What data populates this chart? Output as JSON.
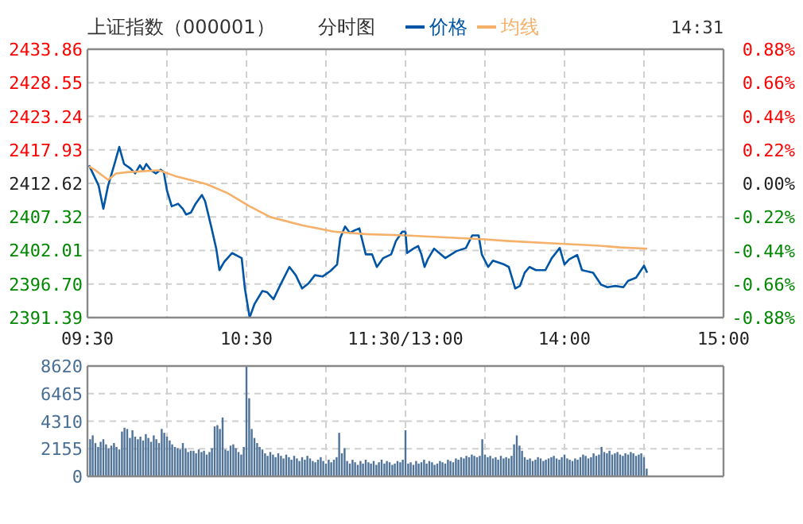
{
  "chart_data": [
    {
      "type": "line",
      "title": "上证指数（000001）",
      "subtitle": "分时图",
      "legend": "top",
      "grid": true,
      "xlim": [
        9.5,
        11.5
      ],
      "xticks": [
        {
          "value": 9.5,
          "label": "09:30"
        },
        {
          "value": 10,
          "label": null
        },
        {
          "value": 10.5,
          "label": "10:30"
        },
        {
          "value": 11,
          "label": null
        }
      ],
      "ylim": [
        2391.39,
        2433.86
      ],
      "yticks": [
        2391.39,
        {
          "value": 2396.7,
          "label": "2396.70"
        },
        2402.01,
        2407.32,
        2412.62,
        2417.93,
        2423.24,
        2428.55,
        2433.86
      ],
      "series": [
        {
          "name": "价格",
          "color": "#0055a5",
          "x": [
            9.51,
            9.57,
            9.6,
            9.63,
            9.67,
            9.7,
            9.73,
            9.77,
            9.8,
            9.83,
            9.85,
            9.87,
            9.9,
            9.93,
            9.96,
            9.98,
            10.0,
            10.03,
            10.07,
            10.1,
            10.12,
            10.15,
            10.18,
            10.22,
            10.24,
            10.28,
            10.31,
            10.33,
            10.36,
            10.41,
            10.47,
            10.49,
            10.52,
            10.55,
            10.6,
            10.63,
            10.67,
            10.71,
            10.77,
            10.81,
            10.85,
            10.89,
            10.93,
            10.98,
            11.03,
            11.07,
            11.09,
            11.12,
            11.15,
            11.18,
            11.21,
            11.25,
            11.29,
            11.32,
            11.36,
            11.41,
            11.44,
            11.48,
            11.5
          ],
          "values": [
            2415.5,
            2412.3,
            2408.6,
            2412.3,
            2415.7,
            2418.4,
            2415.7,
            2415.0,
            2414.2,
            2415.5,
            2414.7,
            2415.7,
            2414.7,
            2414.2,
            2414.8,
            2414.4,
            2411.5,
            2409.0,
            2409.4,
            2408.6,
            2407.7,
            2408.0,
            2409.4,
            2410.8,
            2409.8,
            2405.6,
            2402.3,
            2398.9,
            2400.2,
            2401.6,
            2400.8,
            2396.0,
            2391.4,
            2393.5,
            2395.6,
            2395.4,
            2394.3,
            2396.4,
            2399.4,
            2398.1,
            2396.0,
            2396.8,
            2398.1,
            2397.9,
            2398.8,
            2399.8,
            2404.0,
            2405.8,
            2404.8,
            2405.2,
            2405.5,
            2401.4,
            2401.4,
            2399.4,
            2400.8,
            2401.4,
            2403.5,
            2405.0,
            2405.0
          ]
        },
        {
          "name": "均线",
          "color": "#f5b06a",
          "x": [
            9.51,
            9.55,
            9.63,
            9.68,
            9.75,
            9.95,
            10.05,
            10.25,
            10.38,
            10.52,
            10.65,
            10.85,
            11.05,
            11.25,
            11.5
          ],
          "values": [
            2415.3,
            2414.7,
            2413.2,
            2414.2,
            2414.4,
            2414.7,
            2413.8,
            2412.5,
            2411.1,
            2409.0,
            2407.3,
            2406.0,
            2405.0,
            2404.6,
            2404.4
          ]
        }
      ]
    },
    {
      "type": "line",
      "annotations": [
        "14:31"
      ],
      "grid": true,
      "tick_labels": "xy2",
      "xlim": [
        13,
        15
      ],
      "xticks": [
        {
          "value": 13,
          "label": "11:30/13:00"
        },
        {
          "value": 13.5,
          "label": null
        },
        {
          "value": 14,
          "label": "14:00"
        },
        {
          "value": 14.5,
          "label": null
        },
        {
          "value": 15,
          "label": "15:00"
        }
      ],
      "ylim": [
        2391.39,
        2433.86
      ],
      "y2lim": [
        -0.88,
        0.88
      ],
      "y2ticks": [
        {
          "value": -0.88,
          "label": "-0.88%"
        },
        {
          "value": -0.66,
          "label": "-0.66%"
        },
        {
          "value": -0.44,
          "label": "-0.44%"
        },
        {
          "value": -0.22,
          "label": "-0.22%"
        },
        {
          "value": 0,
          "label": "0.00%"
        },
        {
          "value": 0.22,
          "label": "0.22%"
        },
        {
          "value": 0.44,
          "label": "0.44%"
        },
        {
          "value": 0.66,
          "label": "0.66%"
        },
        {
          "value": 0.88,
          "label": "0.88%"
        }
      ],
      "series": [
        {
          "color": "#0055a5",
          "x": [
            13.0,
            13.01,
            13.05,
            13.08,
            13.1,
            13.12,
            13.14,
            13.18,
            13.25,
            13.32,
            13.38,
            13.42,
            13.46,
            13.48,
            13.52,
            13.55,
            13.62,
            13.65,
            13.69,
            13.72,
            13.75,
            13.78,
            13.82,
            13.88,
            13.92,
            13.97,
            14.0,
            14.03,
            14.08,
            14.11,
            14.18,
            14.23,
            14.27,
            14.32,
            14.37,
            14.4,
            14.45,
            14.5,
            14.52
          ],
          "values": [
            2405.0,
            2401.6,
            2402.3,
            2402.7,
            2401.4,
            2399.4,
            2400.6,
            2402.3,
            2400.8,
            2401.9,
            2402.4,
            2404.4,
            2404.4,
            2401.4,
            2399.4,
            2400.4,
            2399.8,
            2399.4,
            2396.0,
            2396.4,
            2398.5,
            2399.4,
            2398.9,
            2398.9,
            2400.8,
            2402.4,
            2399.8,
            2400.6,
            2401.3,
            2398.9,
            2398.5,
            2396.6,
            2396.2,
            2396.4,
            2396.2,
            2397.2,
            2397.7,
            2399.6,
            2398.5
          ]
        },
        {
          "color": "#f5b06a",
          "x": [
            13.0,
            13.15,
            13.48,
            13.65,
            13.95,
            14.2,
            14.35,
            14.52
          ],
          "values": [
            2404.4,
            2404.2,
            2403.8,
            2403.5,
            2403.1,
            2402.8,
            2402.5,
            2402.3
          ]
        }
      ]
    },
    {
      "type": "bar",
      "grid": true,
      "tick_labels": "y",
      "color": "#4f7398",
      "xlim": [
        9.5,
        11.5
      ],
      "xticks": [
        {
          "value": 9.5,
          "label": null
        },
        {
          "value": 10,
          "label": null
        },
        {
          "value": 10.5,
          "label": null
        },
        {
          "value": 11,
          "label": null
        }
      ],
      "ylim": [
        0,
        8620
      ],
      "yticks": [
        0,
        2155,
        4310,
        6465,
        8620
      ],
      "x": [
        9.517,
        9.533,
        9.55,
        9.567,
        9.583,
        9.6,
        9.617,
        9.633,
        9.65,
        9.667,
        9.683,
        9.7,
        9.717,
        9.733,
        9.75,
        9.767,
        9.783,
        9.8,
        9.817,
        9.833,
        9.85,
        9.867,
        9.883,
        9.9,
        9.917,
        9.933,
        9.95,
        9.967,
        9.983,
        10,
        10.017,
        10.033,
        10.05,
        10.067,
        10.083,
        10.1,
        10.117,
        10.133,
        10.15,
        10.167,
        10.183,
        10.2,
        10.217,
        10.233,
        10.25,
        10.267,
        10.283,
        10.3,
        10.317,
        10.333,
        10.35,
        10.367,
        10.383,
        10.4,
        10.417,
        10.433,
        10.45,
        10.467,
        10.483,
        10.5,
        10.517,
        10.533,
        10.55,
        10.567,
        10.583,
        10.6,
        10.617,
        10.633,
        10.65,
        10.667,
        10.683,
        10.7,
        10.717,
        10.733,
        10.75,
        10.767,
        10.783,
        10.8,
        10.817,
        10.833,
        10.85,
        10.867,
        10.883,
        10.9,
        10.917,
        10.933,
        10.95,
        10.967,
        10.983,
        11,
        11.017,
        11.033,
        11.05,
        11.067,
        11.083,
        11.1,
        11.117,
        11.133,
        11.15,
        11.167,
        11.183,
        11.2,
        11.217,
        11.233,
        11.25,
        11.267,
        11.283,
        11.3,
        11.317,
        11.333,
        11.35,
        11.367,
        11.383,
        11.4,
        11.417,
        11.433,
        11.45,
        11.467,
        11.483,
        11.5
      ],
      "values": [
        2900,
        3200,
        2600,
        2300,
        2700,
        2900,
        2500,
        2200,
        2400,
        2600,
        2300,
        2100,
        3500,
        3800,
        3700,
        3000,
        3600,
        3100,
        2900,
        3100,
        2800,
        3300,
        3000,
        2700,
        3200,
        2900,
        2600,
        3700,
        3400,
        3100,
        2800,
        2500,
        2300,
        2200,
        2100,
        2600,
        2200,
        1900,
        2000,
        2000,
        1800,
        2100,
        1900,
        2000,
        1700,
        1900,
        2200,
        3900,
        4000,
        3700,
        4600,
        2100,
        2000,
        2400,
        2500,
        2200,
        1900,
        1700,
        2300,
        8600,
        6100,
        3700,
        3000,
        2600,
        2300,
        2100,
        1800,
        1600,
        1900,
        1700,
        1500,
        1800,
        1600,
        1400,
        1700,
        1500,
        1300,
        1600,
        1400,
        1200,
        1500,
        1300,
        1600,
        1400,
        1200,
        1100,
        1300,
        1500,
        1200,
        1000,
        1300,
        1100,
        1300,
        1500,
        3400,
        1800,
        2200,
        1200,
        1000,
        1300,
        1100,
        900,
        1200,
        1000,
        1300,
        1100,
        1000,
        1200,
        900,
        1100,
        1300,
        1000,
        1200,
        1100,
        900,
        1000,
        1200,
        1100,
        1300,
        3600
      ]
    },
    {
      "type": "bar",
      "grid": true,
      "tick_labels": false,
      "color": "#4f7398",
      "xlim": [
        13,
        15
      ],
      "xticks": [
        {
          "value": 13,
          "label": null
        },
        {
          "value": 13.5,
          "label": null
        },
        {
          "value": 14,
          "label": null
        },
        {
          "value": 14.5,
          "label": null
        },
        {
          "value": 15,
          "label": null
        }
      ],
      "ylim": [
        0,
        8620
      ],
      "yticks": [
        0,
        2155,
        4310,
        6465,
        8620
      ],
      "x": [
        13.017,
        13.033,
        13.05,
        13.067,
        13.083,
        13.1,
        13.117,
        13.133,
        13.15,
        13.167,
        13.183,
        13.2,
        13.217,
        13.233,
        13.25,
        13.267,
        13.283,
        13.3,
        13.317,
        13.333,
        13.35,
        13.367,
        13.383,
        13.4,
        13.417,
        13.433,
        13.45,
        13.467,
        13.483,
        13.5,
        13.517,
        13.533,
        13.55,
        13.567,
        13.583,
        13.6,
        13.617,
        13.633,
        13.65,
        13.667,
        13.683,
        13.7,
        13.717,
        13.733,
        13.75,
        13.767,
        13.783,
        13.8,
        13.817,
        13.833,
        13.85,
        13.867,
        13.883,
        13.9,
        13.917,
        13.933,
        13.95,
        13.967,
        13.983,
        14,
        14.017,
        14.033,
        14.05,
        14.067,
        14.083,
        14.1,
        14.117,
        14.133,
        14.15,
        14.167,
        14.183,
        14.2,
        14.217,
        14.233,
        14.25,
        14.267,
        14.283,
        14.3,
        14.317,
        14.333,
        14.35,
        14.367,
        14.383,
        14.4,
        14.417,
        14.433,
        14.45,
        14.467,
        14.483,
        14.5,
        14.517
      ],
      "values": [
        1000,
        1100,
        900,
        1200,
        1000,
        1100,
        1300,
        1000,
        1200,
        1100,
        900,
        1000,
        1200,
        1100,
        1000,
        1300,
        1200,
        1100,
        1400,
        1300,
        1500,
        1400,
        1600,
        1500,
        1700,
        1600,
        1500,
        1600,
        2900,
        1700,
        1500,
        1600,
        1400,
        1500,
        1300,
        1600,
        1400,
        1500,
        1400,
        1600,
        2500,
        3200,
        2400,
        2000,
        1500,
        1300,
        1400,
        1200,
        1300,
        1500,
        1400,
        1200,
        1300,
        1400,
        1500,
        1600,
        1400,
        1300,
        1500,
        1700,
        1400,
        1300,
        1200,
        1400,
        1300,
        1500,
        1700,
        1600,
        1400,
        1500,
        1800,
        1600,
        1700,
        2300,
        1900,
        1800,
        2000,
        1700,
        1800,
        1900,
        1700,
        1600,
        1800,
        1700,
        1900,
        1800,
        1600,
        1700,
        1800,
        1500,
        600
      ]
    }
  ]
}
